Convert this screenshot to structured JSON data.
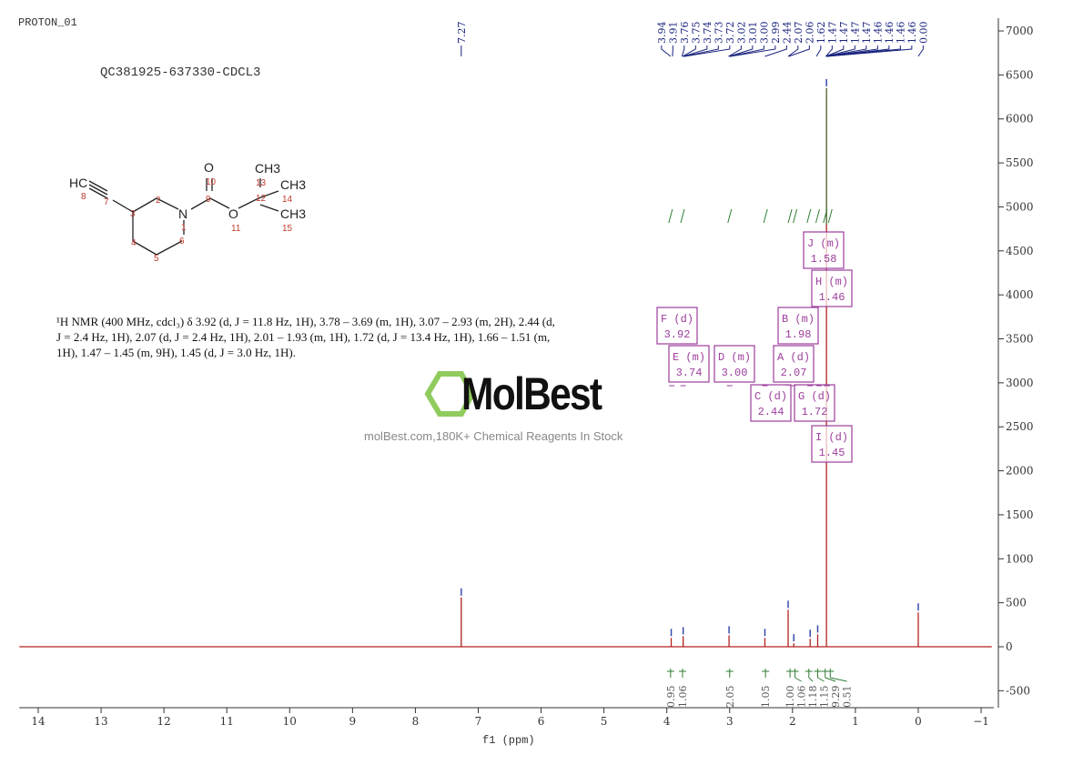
{
  "header": {
    "title": "PROTON_01",
    "sample": "QC381925-637330-CDCL3"
  },
  "description": {
    "lines": [
      "¹H NMR (400 MHz, cdcl₃) δ 3.92 (d, J = 11.8 Hz, 1H), 3.78 – 3.69 (m, 1H), 3.07 – 2.93 (m, 2H), 2.44 (d,",
      "J = 2.4 Hz, 1H), 2.07 (d, J = 2.4 Hz, 1H), 2.01 – 1.93 (m, 1H), 1.72 (d, J = 13.4 Hz, 1H), 1.66 – 1.51 (m,",
      "1H), 1.47 – 1.45 (m, 9H), 1.45 (d, J = 3.0 Hz, 1H)."
    ]
  },
  "watermark": {
    "logo": "MolBest",
    "text": "molBest.com,180K+ Chemical Reagents In Stock"
  },
  "molecule": {
    "atoms": [
      "HC",
      "O",
      "N",
      "O",
      "CH3",
      "CH3",
      "CH3"
    ],
    "numbers": [
      "1",
      "2",
      "3",
      "4",
      "5",
      "6",
      "7",
      "8",
      "9",
      "10",
      "11",
      "12",
      "13",
      "14",
      "15"
    ]
  },
  "colors": {
    "spectrum": "#b22222",
    "peak_label": "#1a237e",
    "integral": "#2e7d32",
    "multiplet": "#9c3d9c",
    "axis": "#333333"
  },
  "chart_data": {
    "type": "line",
    "xlabel": "f1 (ppm)",
    "xlim": [
      14.3,
      -1.17
    ],
    "ylim": [
      -700,
      7200
    ],
    "x_ticks": [
      14,
      13,
      12,
      11,
      10,
      9,
      8,
      7,
      6,
      5,
      4,
      3,
      2,
      1,
      0,
      -1
    ],
    "x_tick_labels": [
      "14",
      "13",
      "12",
      "11",
      "10",
      "9",
      "8",
      "7",
      "6",
      "5",
      "4",
      "3",
      "2",
      "1",
      "0",
      "−1"
    ],
    "y_ticks": [
      -500,
      0,
      500,
      1000,
      1500,
      2000,
      2500,
      3000,
      3500,
      4000,
      4500,
      5000,
      5500,
      6000,
      6500,
      7000
    ],
    "y_tick_labels": [
      "-500",
      "0",
      "500",
      "1000",
      "1500",
      "2000",
      "2500",
      "3000",
      "3500",
      "4000",
      "4500",
      "5000",
      "5500",
      "6000",
      "6500",
      "7000"
    ],
    "peaks": [
      {
        "ppm": 7.27,
        "height": 560
      },
      {
        "ppm": 3.93,
        "height": 100
      },
      {
        "ppm": 3.74,
        "height": 120
      },
      {
        "ppm": 3.01,
        "height": 130
      },
      {
        "ppm": 2.44,
        "height": 100
      },
      {
        "ppm": 2.07,
        "height": 420
      },
      {
        "ppm": 1.98,
        "height": 40
      },
      {
        "ppm": 1.72,
        "height": 90
      },
      {
        "ppm": 1.6,
        "height": 140
      },
      {
        "ppm": 1.46,
        "height": 6350
      },
      {
        "ppm": 0.0,
        "height": 390
      }
    ],
    "peak_labels": [
      "7.27",
      "3.94",
      "3.91",
      "3.76",
      "3.75",
      "3.74",
      "3.73",
      "3.72",
      "3.02",
      "3.01",
      "3.00",
      "2.99",
      "2.44",
      "2.07",
      "2.06",
      "1.62",
      "1.47",
      "1.47",
      "1.47",
      "1.47",
      "1.46",
      "1.46",
      "1.46",
      "1.46",
      "0.00"
    ],
    "multiplets": [
      {
        "id": "F",
        "type": "d",
        "ppm": "3.92"
      },
      {
        "id": "E",
        "type": "m",
        "ppm": "3.74"
      },
      {
        "id": "D",
        "type": "m",
        "ppm": "3.00"
      },
      {
        "id": "B",
        "type": "m",
        "ppm": "1.98"
      },
      {
        "id": "A",
        "type": "d",
        "ppm": "2.07"
      },
      {
        "id": "C",
        "type": "d",
        "ppm": "2.44"
      },
      {
        "id": "G",
        "type": "d",
        "ppm": "1.72"
      },
      {
        "id": "J",
        "type": "m",
        "ppm": "1.58"
      },
      {
        "id": "H",
        "type": "m",
        "ppm": "1.46"
      },
      {
        "id": "I",
        "type": "d",
        "ppm": "1.45"
      }
    ],
    "integrals": [
      {
        "ppm": 3.94,
        "value": "0.95"
      },
      {
        "ppm": 3.75,
        "value": "1.06"
      },
      {
        "ppm": 3.0,
        "value": "2.05"
      },
      {
        "ppm": 2.43,
        "value": "1.05"
      },
      {
        "ppm": 2.04,
        "value": "1.00"
      },
      {
        "ppm": 1.96,
        "value": "1.06"
      },
      {
        "ppm": 1.74,
        "value": "1.18"
      },
      {
        "ppm": 1.6,
        "value": "1.15"
      },
      {
        "ppm": 1.48,
        "value": "9.29"
      },
      {
        "ppm": 1.4,
        "value": "0.51"
      }
    ]
  }
}
